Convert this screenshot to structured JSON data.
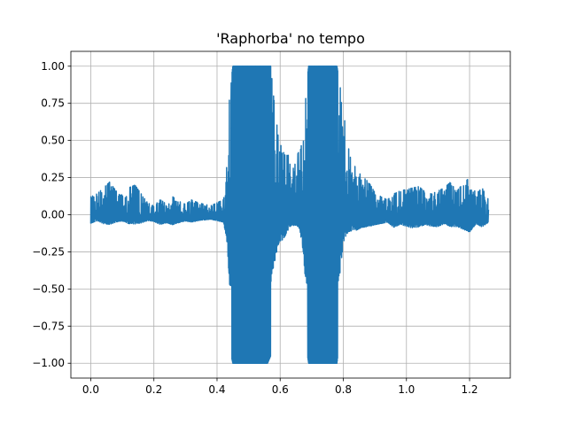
{
  "chart_data": {
    "type": "line",
    "title": "'Raphorba' no tempo",
    "xlabel": "",
    "ylabel": "",
    "xlim": [
      -0.063,
      1.329
    ],
    "ylim": [
      -1.1,
      1.1
    ],
    "xticks": [
      0.0,
      0.2,
      0.4,
      0.6,
      0.8,
      1.0,
      1.2
    ],
    "xtick_labels": [
      "0.0",
      "0.2",
      "0.4",
      "0.6",
      "0.8",
      "1.0",
      "1.2"
    ],
    "yticks": [
      1.0,
      0.75,
      0.5,
      0.25,
      0.0,
      -0.25,
      -0.5,
      -0.75,
      -1.0
    ],
    "ytick_labels": [
      "1.00",
      "0.75",
      "0.50",
      "0.25",
      "0.00",
      "−0.25",
      "−0.50",
      "−0.75",
      "−1.00"
    ],
    "grid": true,
    "series": [
      {
        "color": "#1f77b4",
        "x": [
          0.0,
          0.02,
          0.04,
          0.06,
          0.08,
          0.1,
          0.12,
          0.14,
          0.16,
          0.18,
          0.2,
          0.22,
          0.24,
          0.26,
          0.28,
          0.3,
          0.32,
          0.34,
          0.36,
          0.38,
          0.4,
          0.42,
          0.43,
          0.44,
          0.45,
          0.46,
          0.47,
          0.48,
          0.49,
          0.5,
          0.51,
          0.52,
          0.53,
          0.54,
          0.55,
          0.56,
          0.57,
          0.58,
          0.59,
          0.6,
          0.61,
          0.62,
          0.63,
          0.64,
          0.65,
          0.66,
          0.67,
          0.68,
          0.69,
          0.7,
          0.71,
          0.72,
          0.73,
          0.74,
          0.75,
          0.76,
          0.77,
          0.78,
          0.79,
          0.8,
          0.81,
          0.82,
          0.83,
          0.84,
          0.86,
          0.88,
          0.9,
          0.92,
          0.94,
          0.96,
          0.98,
          1.0,
          1.02,
          1.04,
          1.06,
          1.08,
          1.1,
          1.12,
          1.14,
          1.16,
          1.18,
          1.2,
          1.22,
          1.24,
          1.26
        ],
        "y_upper": [
          0.12,
          0.14,
          0.18,
          0.22,
          0.16,
          0.13,
          0.18,
          0.2,
          0.14,
          0.08,
          0.06,
          0.1,
          0.08,
          0.12,
          0.09,
          0.07,
          0.1,
          0.08,
          0.07,
          0.06,
          0.08,
          0.1,
          0.3,
          0.82,
          1.0,
          1.0,
          1.0,
          1.0,
          1.0,
          1.0,
          1.0,
          1.0,
          1.0,
          1.0,
          1.0,
          1.0,
          1.0,
          0.78,
          0.6,
          0.48,
          0.42,
          0.4,
          0.4,
          0.3,
          0.38,
          0.43,
          0.48,
          0.8,
          1.0,
          1.0,
          1.0,
          1.0,
          1.0,
          1.0,
          1.0,
          1.0,
          1.0,
          1.0,
          0.86,
          0.74,
          0.5,
          0.42,
          0.38,
          0.3,
          0.26,
          0.22,
          0.15,
          0.12,
          0.1,
          0.14,
          0.16,
          0.17,
          0.18,
          0.19,
          0.15,
          0.14,
          0.16,
          0.18,
          0.22,
          0.16,
          0.21,
          0.25,
          0.14,
          0.18,
          0.1
        ],
        "y_lower": [
          -0.12,
          -0.1,
          -0.14,
          -0.16,
          -0.12,
          -0.1,
          -0.14,
          -0.15,
          -0.12,
          -0.08,
          -0.08,
          -0.12,
          -0.1,
          -0.13,
          -0.1,
          -0.08,
          -0.1,
          -0.08,
          -0.07,
          -0.06,
          -0.08,
          -0.1,
          -0.3,
          -0.9,
          -1.0,
          -1.0,
          -1.0,
          -1.0,
          -1.0,
          -1.0,
          -1.0,
          -1.0,
          -1.0,
          -1.0,
          -1.0,
          -1.0,
          -0.95,
          -0.72,
          -0.52,
          -0.4,
          -0.36,
          -0.3,
          -0.24,
          -0.2,
          -0.22,
          -0.26,
          -0.42,
          -0.85,
          -1.0,
          -1.0,
          -1.0,
          -1.0,
          -1.0,
          -1.0,
          -1.0,
          -1.0,
          -1.0,
          -1.0,
          -0.8,
          -0.5,
          -0.34,
          -0.3,
          -0.26,
          -0.24,
          -0.2,
          -0.18,
          -0.14,
          -0.12,
          -0.1,
          -0.16,
          -0.14,
          -0.16,
          -0.18,
          -0.17,
          -0.14,
          -0.15,
          -0.16,
          -0.14,
          -0.18,
          -0.16,
          -0.2,
          -0.24,
          -0.13,
          -0.17,
          -0.1
        ]
      }
    ]
  }
}
